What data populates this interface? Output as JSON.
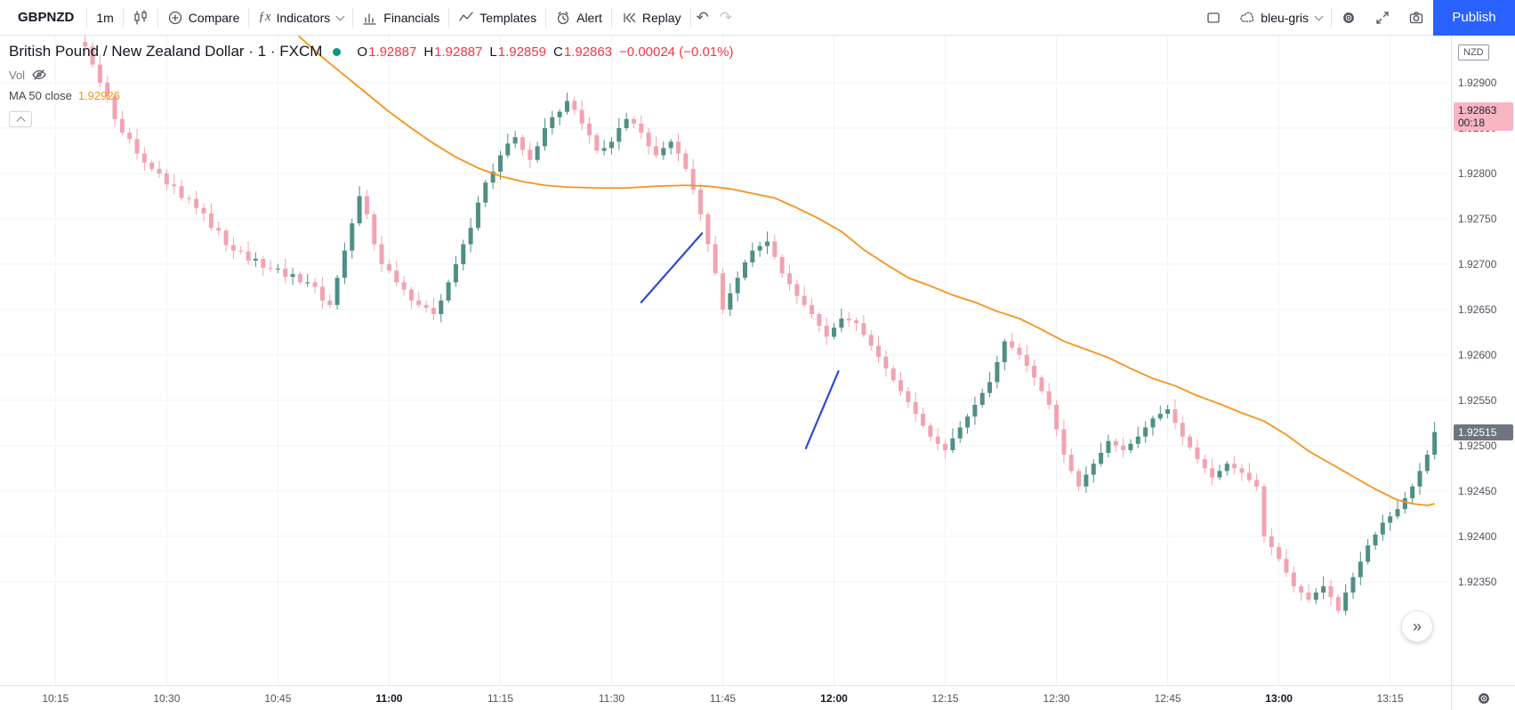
{
  "toolbar": {
    "symbol": "GBPNZD",
    "interval": "1m",
    "compare": "Compare",
    "indicators": "Indicators",
    "financials": "Financials",
    "templates": "Templates",
    "alert": "Alert",
    "replay": "Replay",
    "layout_name": "bleu-gris",
    "publish": "Publish"
  },
  "icons": {
    "undo": "↶",
    "redo": "↷",
    "goto_realtime": "»"
  },
  "legend": {
    "title": "British Pound / New Zealand Dollar · 1 · FXCM",
    "ohlc": {
      "o_label": "O",
      "o": "1.92887",
      "h_label": "H",
      "h": "1.92887",
      "l_label": "L",
      "l": "1.92859",
      "c_label": "C",
      "c": "1.92863",
      "change": "−0.00024 (−0.01%)"
    },
    "vol_label": "Vol",
    "ma_label": "MA 50 close",
    "ma_value": "1.92926"
  },
  "price_axis": {
    "currency": "NZD",
    "last_badge": {
      "text": "1.92863",
      "countdown": "00:18",
      "p": 863
    },
    "bar_badge": {
      "text": "1.92515",
      "p": 515
    }
  },
  "colors": {
    "accent_blue": "#2962ff",
    "up_candle": "#4f8f86",
    "down_candle": "#f2a3b0",
    "ma_line": "#f7921e",
    "trendline": "#2e4bd0",
    "grid": "#f0f3fa",
    "red_text": "#f23645",
    "last_badge_bg": "#f7b6c2",
    "bar_badge_bg": "#6f7480"
  },
  "chart_data": {
    "type": "candlestick",
    "title": "British Pound / New Zealand Dollar · 1 · FXCM",
    "symbol": "GBPNZD",
    "interval": "1m",
    "exchange": "FXCM",
    "ohlc_legend": {
      "open": 1.92887,
      "high": 1.92887,
      "low": 1.92859,
      "close": 1.92863
    },
    "price_base": 1.92,
    "p_top_1e5": 952,
    "p_bottom_1e5": 236,
    "n_slots": 195,
    "start_index": 11,
    "first_open_1e5": 945,
    "closes_1e5": [
      940,
      920,
      900,
      885,
      860,
      845,
      838,
      822,
      812,
      805,
      800,
      788,
      786,
      773,
      772,
      762,
      756,
      740,
      737,
      721,
      715,
      714,
      704,
      706,
      696,
      695,
      695,
      686,
      689,
      680,
      680,
      675,
      660,
      655,
      685,
      715,
      745,
      775,
      755,
      722,
      700,
      693,
      680,
      672,
      660,
      655,
      652,
      645,
      660,
      680,
      700,
      722,
      740,
      768,
      790,
      802,
      820,
      833,
      840,
      826,
      815,
      830,
      850,
      862,
      868,
      880,
      870,
      855,
      842,
      825,
      828,
      835,
      850,
      860,
      855,
      845,
      830,
      820,
      828,
      835,
      822,
      805,
      782,
      755,
      722,
      690,
      650,
      668,
      685,
      702,
      715,
      720,
      725,
      708,
      690,
      678,
      665,
      655,
      645,
      632,
      620,
      630,
      640,
      638,
      635,
      622,
      610,
      598,
      585,
      572,
      560,
      548,
      535,
      522,
      510,
      502,
      495,
      508,
      520,
      532,
      545,
      558,
      570,
      592,
      615,
      608,
      600,
      588,
      575,
      560,
      545,
      518,
      490,
      472,
      455,
      468,
      480,
      492,
      505,
      500,
      495,
      502,
      510,
      520,
      530,
      535,
      540,
      525,
      510,
      498,
      485,
      475,
      465,
      472,
      480,
      475,
      470,
      462,
      455,
      400,
      388,
      375,
      360,
      345,
      338,
      330,
      338,
      345,
      333,
      318,
      338,
      355,
      372,
      390,
      402,
      415,
      422,
      430,
      442,
      455,
      472,
      490,
      515
    ],
    "ma50_points": [
      [
        38,
        975
      ],
      [
        40,
        950
      ],
      [
        43,
        928
      ],
      [
        46,
        908
      ],
      [
        49,
        888
      ],
      [
        52,
        868
      ],
      [
        55,
        850
      ],
      [
        58,
        833
      ],
      [
        61,
        818
      ],
      [
        64,
        806
      ],
      [
        67,
        797
      ],
      [
        70,
        791
      ],
      [
        73,
        787
      ],
      [
        76,
        785
      ],
      [
        80,
        784
      ],
      [
        84,
        784
      ],
      [
        88,
        786
      ],
      [
        92,
        787
      ],
      [
        95,
        786
      ],
      [
        98,
        783
      ],
      [
        101,
        778
      ],
      [
        104,
        773
      ],
      [
        107,
        762
      ],
      [
        110,
        750
      ],
      [
        113,
        736
      ],
      [
        116,
        716
      ],
      [
        119,
        700
      ],
      [
        122,
        685
      ],
      [
        125,
        676
      ],
      [
        128,
        666
      ],
      [
        131,
        658
      ],
      [
        134,
        648
      ],
      [
        137,
        640
      ],
      [
        140,
        628
      ],
      [
        143,
        615
      ],
      [
        146,
        606
      ],
      [
        149,
        597
      ],
      [
        152,
        585
      ],
      [
        155,
        574
      ],
      [
        158,
        566
      ],
      [
        161,
        555
      ],
      [
        164,
        546
      ],
      [
        167,
        536
      ],
      [
        170,
        527
      ],
      [
        173,
        512
      ],
      [
        176,
        494
      ],
      [
        179,
        480
      ],
      [
        182,
        466
      ],
      [
        185,
        452
      ],
      [
        188,
        440
      ],
      [
        190,
        436
      ],
      [
        192,
        434
      ],
      [
        193,
        436
      ]
    ],
    "trendlines": [
      {
        "i1": 86,
        "p1": 658,
        "i2": 94.2,
        "p2": 734
      },
      {
        "i1": 108.2,
        "p1": 497,
        "i2": 112.6,
        "p2": 582
      }
    ],
    "y_axis": [
      {
        "p": 900,
        "label": "1.92900"
      },
      {
        "p": 850,
        "label": "1.92850"
      },
      {
        "p": 800,
        "label": "1.92800"
      },
      {
        "p": 750,
        "label": "1.92750"
      },
      {
        "p": 700,
        "label": "1.92700"
      },
      {
        "p": 650,
        "label": "1.92650"
      },
      {
        "p": 600,
        "label": "1.92600"
      },
      {
        "p": 550,
        "label": "1.92550"
      },
      {
        "p": 500,
        "label": "1.92500"
      },
      {
        "p": 450,
        "label": "1.92450"
      },
      {
        "p": 400,
        "label": "1.92400"
      },
      {
        "p": 350,
        "label": "1.92350"
      }
    ],
    "x_ticks": [
      {
        "i": 7,
        "label": "10:15",
        "bold": false
      },
      {
        "i": 22,
        "label": "10:30",
        "bold": false
      },
      {
        "i": 37,
        "label": "10:45",
        "bold": false
      },
      {
        "i": 52,
        "label": "11:00",
        "bold": true
      },
      {
        "i": 67,
        "label": "11:15",
        "bold": false
      },
      {
        "i": 82,
        "label": "11:30",
        "bold": false
      },
      {
        "i": 97,
        "label": "11:45",
        "bold": false
      },
      {
        "i": 112,
        "label": "12:00",
        "bold": true
      },
      {
        "i": 127,
        "label": "12:15",
        "bold": false
      },
      {
        "i": 142,
        "label": "12:30",
        "bold": false
      },
      {
        "i": 157,
        "label": "12:45",
        "bold": false
      },
      {
        "i": 172,
        "label": "13:00",
        "bold": true
      },
      {
        "i": 187,
        "label": "13:15",
        "bold": false
      }
    ]
  }
}
